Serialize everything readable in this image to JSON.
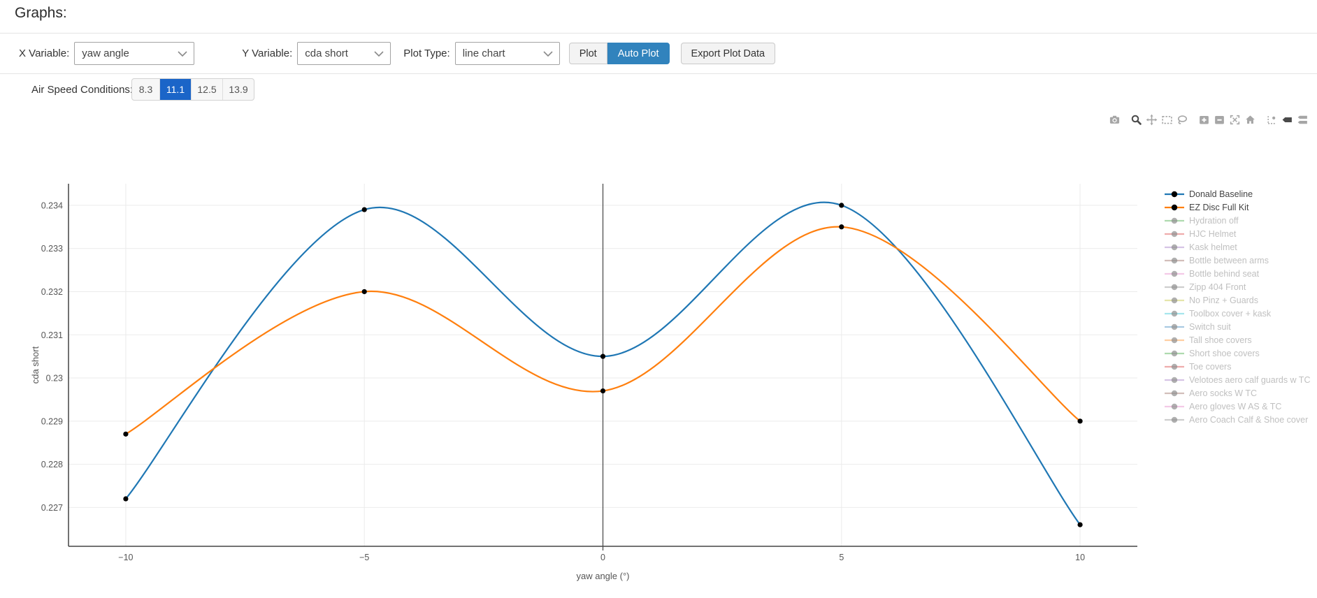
{
  "page": {
    "title": "Graphs:"
  },
  "controls": {
    "x_variable": {
      "label": "X Variable:",
      "value": "yaw angle"
    },
    "y_variable": {
      "label": "Y Variable:",
      "value": "cda short"
    },
    "plot_type": {
      "label": "Plot Type:",
      "value": "line chart"
    },
    "plot_button": "Plot",
    "auto_plot_button": "Auto Plot",
    "export_button": "Export Plot Data",
    "active_plot_mode": "Auto Plot"
  },
  "air_speed": {
    "label": "Air Speed Conditions:",
    "options": [
      "8.3",
      "11.1",
      "12.5",
      "13.9"
    ],
    "selected": "11.1"
  },
  "modebar": {
    "icons": [
      {
        "name": "camera",
        "title": "Download plot as a png",
        "active": false,
        "group_start": false
      },
      {
        "name": "zoom",
        "title": "Zoom",
        "active": true,
        "group_start": true
      },
      {
        "name": "pan",
        "title": "Pan",
        "active": false,
        "group_start": false
      },
      {
        "name": "box-select",
        "title": "Box Select",
        "active": false,
        "group_start": false
      },
      {
        "name": "lasso-select",
        "title": "Lasso Select",
        "active": false,
        "group_start": false
      },
      {
        "name": "zoom-in",
        "title": "Zoom in",
        "active": false,
        "group_start": true
      },
      {
        "name": "zoom-out",
        "title": "Zoom out",
        "active": false,
        "group_start": false
      },
      {
        "name": "autoscale",
        "title": "Autoscale",
        "active": false,
        "group_start": false
      },
      {
        "name": "home",
        "title": "Reset axes",
        "active": false,
        "group_start": false
      },
      {
        "name": "spikelines",
        "title": "Toggle Spike Lines",
        "active": false,
        "group_start": true
      },
      {
        "name": "hover-closest",
        "title": "Show closest data on hover",
        "active": true,
        "group_start": false
      },
      {
        "name": "hover-compare",
        "title": "Compare data on hover",
        "active": false,
        "group_start": false
      }
    ]
  },
  "colors": {
    "accent_blue": "#3183bd",
    "selected_blue": "#1b65c8",
    "grid": "#ebebeb",
    "axis": "#444444",
    "tick_text": "#565656",
    "modebar_icon": "#a6a6a6",
    "modebar_icon_active": "#4a4a4a",
    "marker": "#000000",
    "legend_text": "#444444",
    "legend_muted_text": "#c0c0c0"
  },
  "chart_data": {
    "type": "line",
    "line_shape": "spline",
    "title": "",
    "xlabel": "yaw angle (°)",
    "ylabel": "cda short",
    "legend_position": "right",
    "grid": true,
    "x": [
      -10,
      -5,
      0,
      5,
      10
    ],
    "x_tick_values": [
      -10,
      -5,
      0,
      5,
      10
    ],
    "x_tick_labels": [
      "−10",
      "−5",
      "0",
      "5",
      "10"
    ],
    "y_tick_values": [
      0.227,
      0.228,
      0.229,
      0.23,
      0.231,
      0.232,
      0.233,
      0.234
    ],
    "y_tick_labels": [
      "0.227",
      "0.228",
      "0.229",
      "0.23",
      "0.231",
      "0.232",
      "0.233",
      "0.234"
    ],
    "x_range": [
      -11.2,
      11.2
    ],
    "y_range": [
      0.2261,
      0.2345
    ],
    "marker_color": "#000000",
    "series": [
      {
        "name": "Donald Baseline",
        "color": "#1f77b4",
        "visible": true,
        "values": [
          0.2272,
          0.2339,
          0.2305,
          0.234,
          0.2266
        ]
      },
      {
        "name": "EZ Disc Full Kit",
        "color": "#ff7f0e",
        "visible": true,
        "values": [
          0.2287,
          0.232,
          0.2297,
          0.2335,
          0.229
        ]
      },
      {
        "name": "Hydration off",
        "color": "#2ca02c",
        "visible": false
      },
      {
        "name": "HJC Helmet",
        "color": "#d62728",
        "visible": false
      },
      {
        "name": "Kask helmet",
        "color": "#9467bd",
        "visible": false
      },
      {
        "name": "Bottle between arms",
        "color": "#8c564b",
        "visible": false
      },
      {
        "name": "Bottle behind seat",
        "color": "#e377c2",
        "visible": false
      },
      {
        "name": "Zipp 404 Front",
        "color": "#7f7f7f",
        "visible": false
      },
      {
        "name": "No Pinz + Guards",
        "color": "#bcbd22",
        "visible": false
      },
      {
        "name": "Toolbox cover + kask",
        "color": "#17becf",
        "visible": false
      },
      {
        "name": "Switch suit",
        "color": "#1f77b4",
        "visible": false
      },
      {
        "name": "Tall shoe covers",
        "color": "#ff7f0e",
        "visible": false
      },
      {
        "name": "Short shoe covers",
        "color": "#2ca02c",
        "visible": false
      },
      {
        "name": "Toe covers",
        "color": "#d62728",
        "visible": false
      },
      {
        "name": "Velotoes aero calf guards w TC",
        "color": "#9467bd",
        "visible": false
      },
      {
        "name": "Aero socks W TC",
        "color": "#8c564b",
        "visible": false
      },
      {
        "name": "Aero gloves W AS & TC",
        "color": "#e377c2",
        "visible": false
      },
      {
        "name": "Aero Coach Calf & Shoe cover",
        "color": "#7f7f7f",
        "visible": false
      }
    ]
  }
}
